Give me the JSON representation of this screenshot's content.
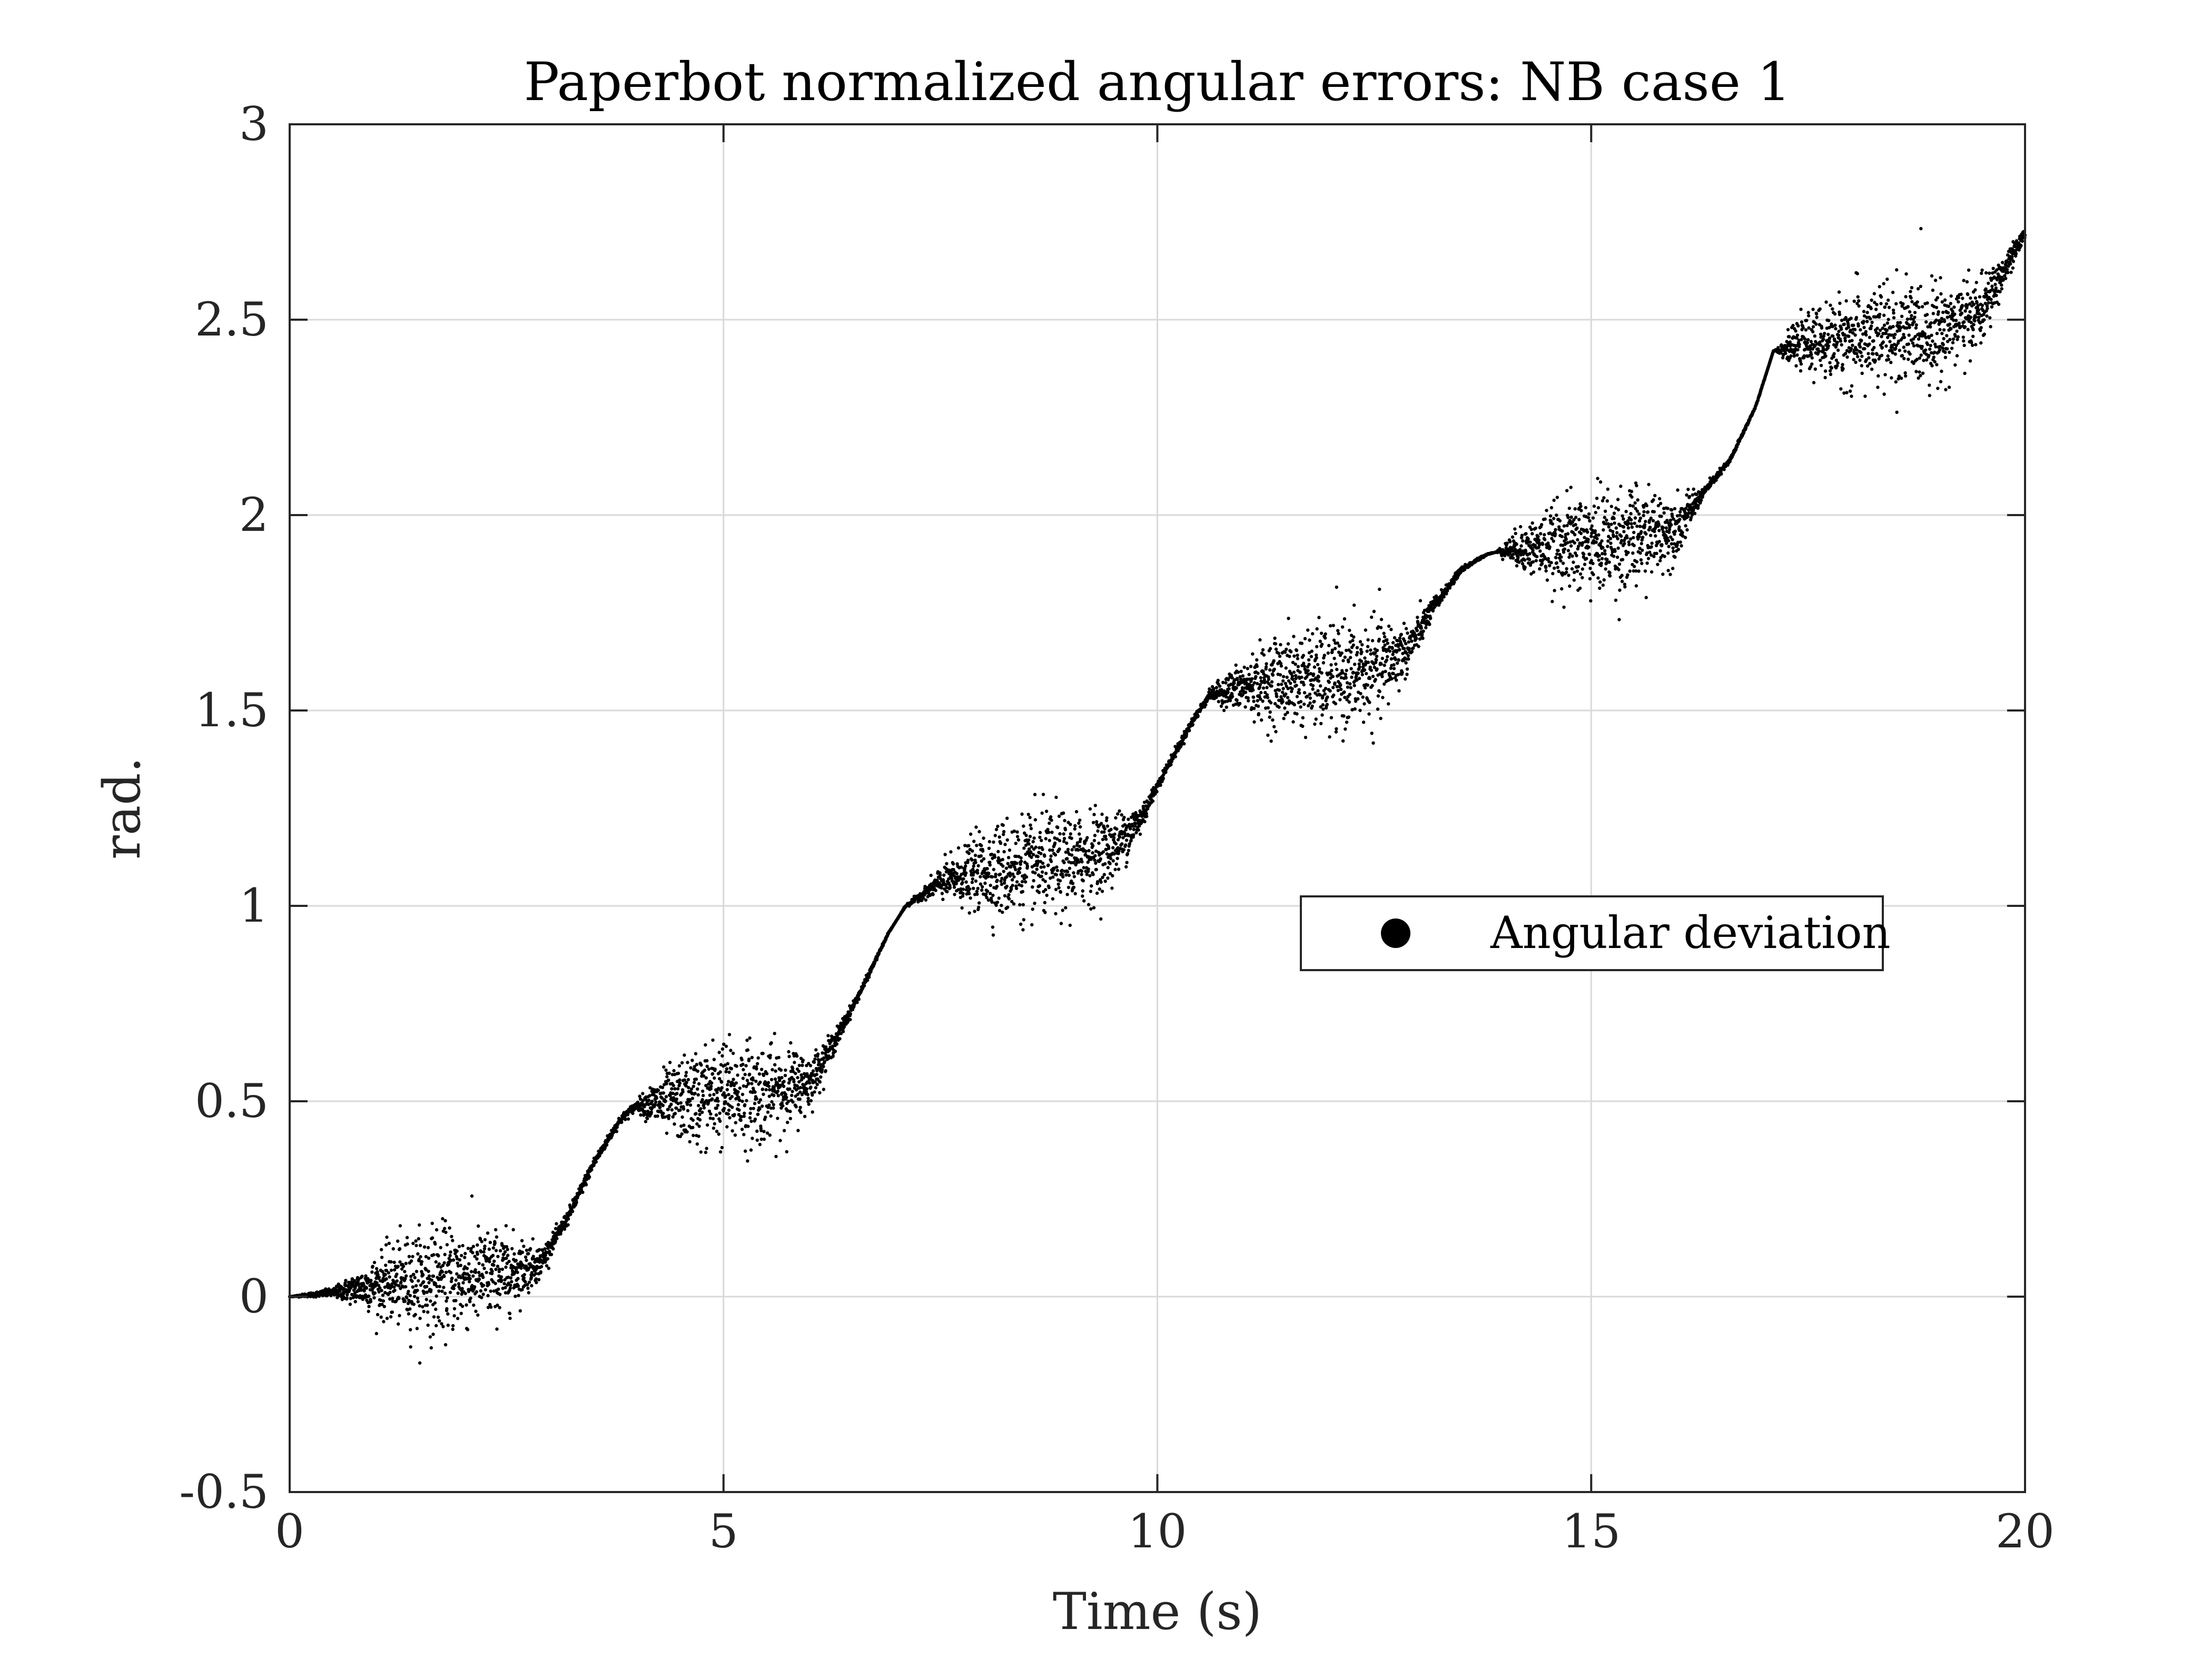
{
  "chart_data": {
    "type": "scatter",
    "title": "Paperbot normalized angular errors: NB case 1",
    "xlabel": "Time (s)",
    "ylabel": "rad.",
    "xlim": [
      0,
      20
    ],
    "ylim": [
      -0.5,
      3
    ],
    "x_ticks": [
      0,
      5,
      10,
      15,
      20
    ],
    "y_ticks": [
      -0.5,
      0,
      0.5,
      1,
      1.5,
      2,
      2.5,
      3
    ],
    "x_tick_labels": [
      "0",
      "5",
      "10",
      "15",
      "20"
    ],
    "y_tick_labels": [
      "-0.5",
      "0",
      "0.5",
      "1",
      "1.5",
      "2",
      "2.5",
      "3"
    ],
    "grid": true,
    "legend": {
      "position": "right-middle",
      "entries": [
        "Angular deviation"
      ]
    },
    "series": [
      {
        "name": "Angular deviation",
        "marker": "dot",
        "color": "#000000",
        "x": [
          0.0,
          0.5,
          1.0,
          1.5,
          2.0,
          2.5,
          2.9,
          3.2,
          3.5,
          3.8,
          4.0,
          4.5,
          5.0,
          5.5,
          6.0,
          6.3,
          6.6,
          6.9,
          7.1,
          7.5,
          8.0,
          8.5,
          9.0,
          9.5,
          9.8,
          10.1,
          10.4,
          10.6,
          11.0,
          11.5,
          12.0,
          12.5,
          12.9,
          13.2,
          13.5,
          13.8,
          14.0,
          14.5,
          15.0,
          15.5,
          16.0,
          16.3,
          16.6,
          16.9,
          17.1,
          17.5,
          18.0,
          18.5,
          19.0,
          19.5,
          20.0
        ],
        "y": [
          0.0,
          0.01,
          0.03,
          0.04,
          0.05,
          0.06,
          0.09,
          0.2,
          0.34,
          0.45,
          0.49,
          0.5,
          0.52,
          0.52,
          0.55,
          0.66,
          0.79,
          0.93,
          1.0,
          1.06,
          1.09,
          1.1,
          1.11,
          1.15,
          1.22,
          1.35,
          1.47,
          1.54,
          1.56,
          1.58,
          1.58,
          1.6,
          1.66,
          1.77,
          1.86,
          1.9,
          1.91,
          1.92,
          1.93,
          1.94,
          1.97,
          2.06,
          2.14,
          2.28,
          2.42,
          2.44,
          2.45,
          2.46,
          2.47,
          2.52,
          2.72
        ],
        "band_x": [
          0.0,
          0.5,
          0.8,
          1.2,
          1.6,
          2.0,
          2.5,
          2.8,
          3.0,
          3.6,
          4.0,
          4.3,
          4.8,
          5.3,
          5.8,
          6.2,
          6.5,
          7.0,
          7.3,
          7.7,
          8.2,
          8.8,
          9.3,
          9.7,
          10.0,
          10.6,
          10.9,
          11.4,
          12.0,
          12.6,
          12.9,
          13.3,
          13.9,
          14.2,
          14.8,
          15.4,
          15.9,
          16.3,
          17.1,
          17.4,
          18.0,
          18.6,
          19.2,
          19.6,
          20.0
        ],
        "band_halfwidth": [
          0.0,
          0.01,
          0.04,
          0.09,
          0.12,
          0.12,
          0.09,
          0.05,
          0.02,
          0.01,
          0.01,
          0.07,
          0.12,
          0.12,
          0.09,
          0.03,
          0.01,
          0.0,
          0.01,
          0.06,
          0.11,
          0.12,
          0.1,
          0.05,
          0.01,
          0.01,
          0.05,
          0.1,
          0.12,
          0.11,
          0.05,
          0.01,
          0.0,
          0.05,
          0.11,
          0.12,
          0.08,
          0.01,
          0.0,
          0.05,
          0.11,
          0.12,
          0.1,
          0.06,
          0.01
        ]
      }
    ]
  }
}
